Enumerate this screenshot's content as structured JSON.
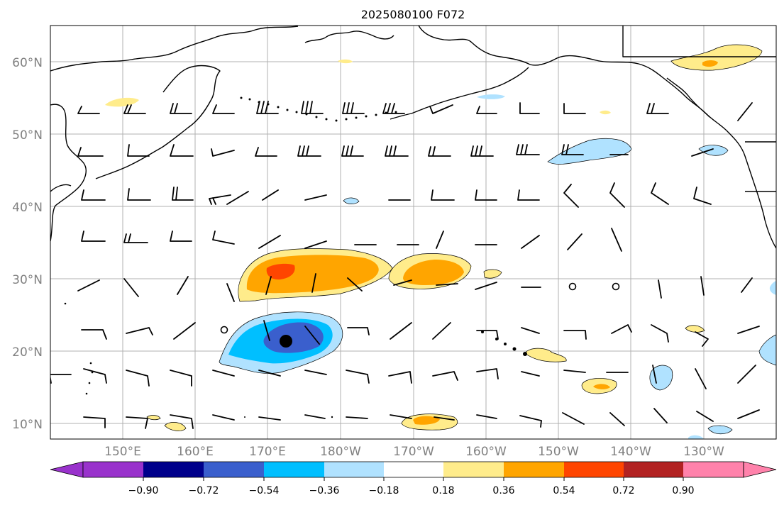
{
  "title": "2025080100 F072",
  "map": {
    "lat_labels": [
      "60°N",
      "50°N",
      "40°N",
      "30°N",
      "20°N",
      "10°N"
    ],
    "lon_labels": [
      "150°E",
      "160°E",
      "170°E",
      "180°W",
      "170°W",
      "160°W",
      "150°W",
      "140°W",
      "130°W"
    ]
  },
  "colorbar": {
    "ticks": [
      "−0.90",
      "−0.72",
      "−0.54",
      "−0.36",
      "−0.18",
      "0.18",
      "0.36",
      "0.54",
      "0.72",
      "0.90"
    ],
    "colors": [
      "#9932cc",
      "#00008b",
      "#3a5fcd",
      "#00bfff",
      "#b0e2ff",
      "#ffffff",
      "#ffec8b",
      "#ffa500",
      "#ff4500",
      "#b22222",
      "#ff82ab"
    ]
  },
  "icons": {
    "marker": "storm-center-dot",
    "barbs": "wind-barb-icon"
  }
}
